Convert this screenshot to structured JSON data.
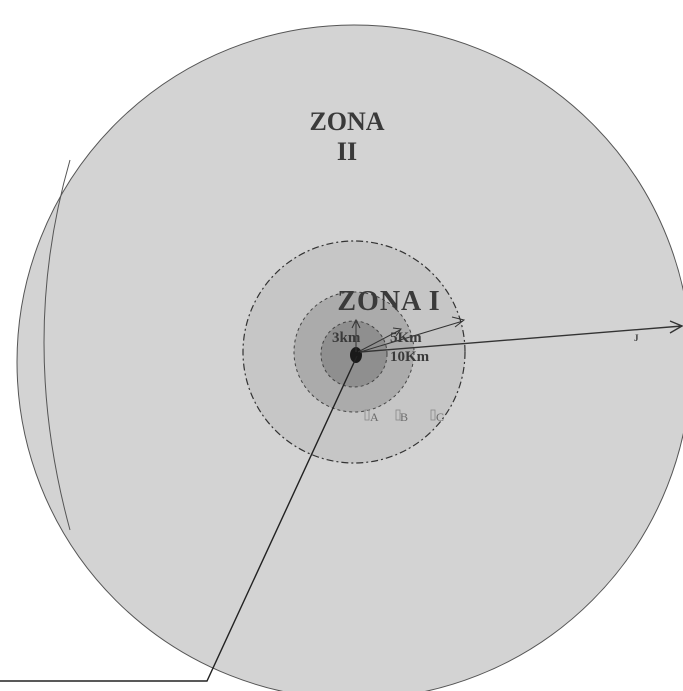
{
  "zones": {
    "zone2": {
      "line1": "ZONA",
      "line2": "II"
    },
    "zone1": {
      "label": "ZONA I"
    }
  },
  "radii_labels": {
    "r3": "3km",
    "r5": "5Km",
    "r10": "10Km"
  },
  "sector_labels": {
    "a": "A",
    "b": "B",
    "c": "C"
  },
  "colors": {
    "background": "#ffffff",
    "zone2_fill": "#d3d3d3",
    "zone1_fill": "#c8c8c8",
    "ring5_fill": "#a9a9a9",
    "ring3_fill": "#8e8e8e",
    "center": "#1a1a1a",
    "lines": "#333333"
  }
}
